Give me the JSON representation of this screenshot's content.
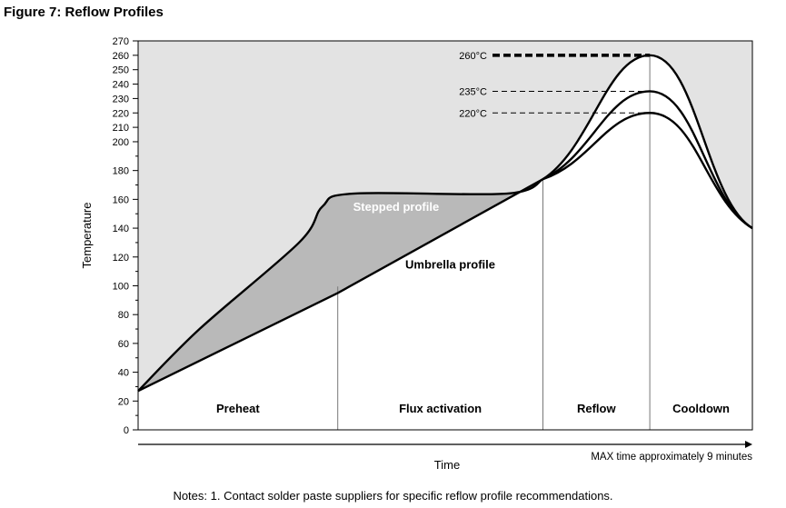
{
  "figure": {
    "title": "Figure 7: Reflow Profiles",
    "notes": "Notes: 1. Contact solder paste suppliers for specific reflow profile recommendations."
  },
  "chart_data": {
    "type": "line",
    "title": "Figure 7: Reflow Profiles",
    "xlabel": "Time",
    "ylabel": "Temperature",
    "x_annotation": "MAX time approximately 9 minutes",
    "ylim": [
      0,
      270
    ],
    "y_ticks": [
      0,
      20,
      40,
      60,
      80,
      100,
      120,
      140,
      160,
      180,
      200,
      210,
      220,
      230,
      240,
      250,
      260,
      270
    ],
    "x_units": "fraction of total time",
    "phases": [
      {
        "name": "Preheat",
        "start": 0,
        "end": 0.325
      },
      {
        "name": "Flux activation",
        "start": 0.325,
        "end": 0.659
      },
      {
        "name": "Reflow",
        "start": 0.659,
        "end": 0.833
      },
      {
        "name": "Cooldown",
        "start": 0.833,
        "end": 1.0
      }
    ],
    "peak_labels": [
      {
        "label": "260°C",
        "value": 260
      },
      {
        "label": "235°C",
        "value": 235
      },
      {
        "label": "220°C",
        "value": 220
      }
    ],
    "series": [
      {
        "name": "Stepped profile",
        "x": [
          0,
          0.1,
          0.262,
          0.3,
          0.35,
          0.6,
          0.659
        ],
        "y": [
          27,
          70,
          130,
          155,
          164,
          164,
          174
        ]
      },
      {
        "name": "Umbrella profile",
        "x": [
          0,
          0.325,
          0.659
        ],
        "y": [
          27,
          95,
          174
        ]
      }
    ],
    "peak_curves": [
      {
        "name": "260°C",
        "x": [
          0.659,
          0.833,
          1.0
        ],
        "y": [
          174,
          260,
          140
        ]
      },
      {
        "name": "235°C",
        "x": [
          0.659,
          0.833,
          1.0
        ],
        "y": [
          174,
          235,
          140
        ]
      },
      {
        "name": "220°C",
        "x": [
          0.659,
          0.833,
          1.0
        ],
        "y": [
          174,
          220,
          140
        ]
      }
    ],
    "grid": false
  }
}
